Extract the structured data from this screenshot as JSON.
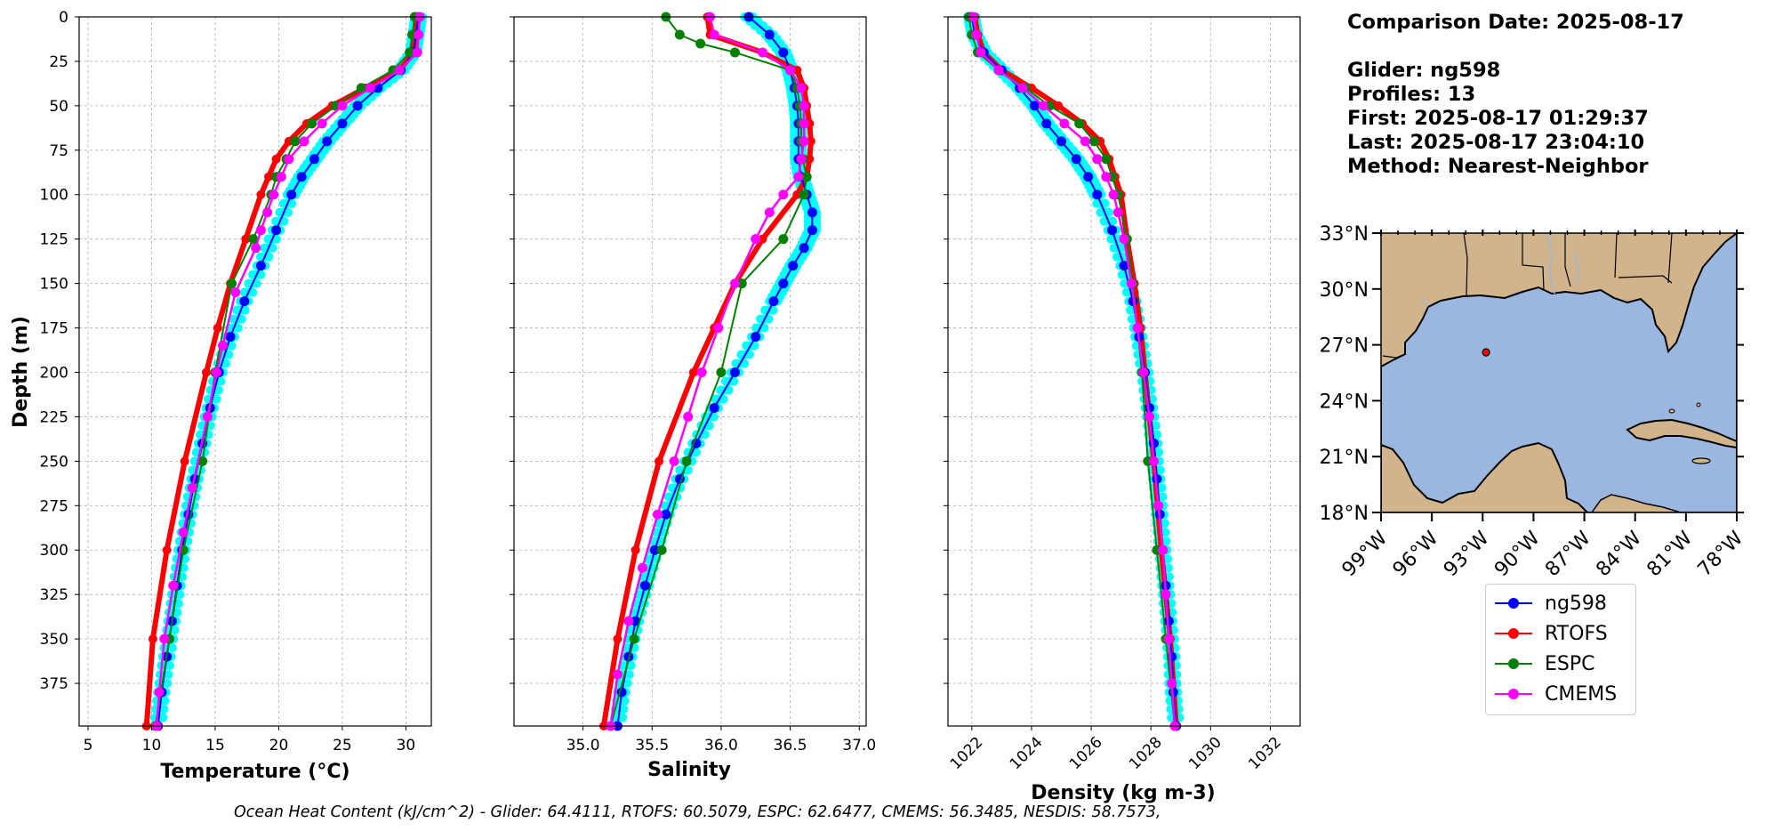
{
  "info": {
    "comparison_date": "Comparison Date: 2025-08-17",
    "glider": "Glider: ng598",
    "profiles": "Profiles: 13",
    "first": "First: 2025-08-17 01:29:37",
    "last": "Last: 2025-08-17 23:04:10",
    "method": "Method: Nearest-Neighbor"
  },
  "footer": "Ocean Heat Content (kJ/cm^2) - Glider: 64.4111,  RTOFS: 60.5079,  ESPC: 62.6477,  CMEMS: 56.3485,  NESDIS: 58.7573,",
  "legend": [
    {
      "label": "ng598",
      "color": "#0000ff"
    },
    {
      "label": "RTOFS",
      "color": "#ff0000"
    },
    {
      "label": "ESPC",
      "color": "#008000"
    },
    {
      "label": "CMEMS",
      "color": "#ff00ff"
    }
  ],
  "colors": {
    "glider_points": "#00ffff",
    "land": "#d2b48c",
    "ocean": "#9bb7e0"
  },
  "chart_data": [
    {
      "type": "line",
      "xlabel": "Temperature (°C)",
      "ylabel": "Depth (m)",
      "xlim": [
        4.3,
        32
      ],
      "xticks": [
        5,
        10,
        15,
        20,
        25,
        30
      ],
      "ylim": [
        399,
        0
      ],
      "yticks": [
        0,
        25,
        50,
        75,
        100,
        125,
        150,
        175,
        200,
        225,
        250,
        275,
        300,
        325,
        350,
        375
      ],
      "grid": true,
      "series": [
        {
          "name": "ng598",
          "color": "#0000ff",
          "depth": [
            0,
            10,
            20,
            30,
            40,
            50,
            60,
            70,
            80,
            90,
            100,
            120,
            140,
            160,
            180,
            200,
            220,
            240,
            260,
            280,
            300,
            320,
            340,
            360,
            380,
            399
          ],
          "values": [
            31,
            30.8,
            30.6,
            29.6,
            27.8,
            26.2,
            25,
            23.8,
            22.8,
            21.8,
            21,
            19.8,
            18.6,
            17.3,
            16.2,
            15.3,
            14.6,
            14,
            13.4,
            12.9,
            12.4,
            12,
            11.6,
            11.2,
            10.8,
            10.5
          ]
        },
        {
          "name": "RTOFS",
          "color": "#ff0000",
          "depth": [
            0,
            10,
            20,
            30,
            40,
            50,
            60,
            70,
            80,
            90,
            100,
            125,
            150,
            175,
            200,
            250,
            300,
            350,
            399
          ],
          "values": [
            30.8,
            30.7,
            30.6,
            29.5,
            26.8,
            24.2,
            22.2,
            20.8,
            19.8,
            19.2,
            18.6,
            17.4,
            16.2,
            15.2,
            14.3,
            12.6,
            11.2,
            10.1,
            9.6
          ]
        },
        {
          "name": "ESPC",
          "color": "#008000",
          "depth": [
            0,
            10,
            20,
            30,
            40,
            50,
            60,
            70,
            80,
            90,
            100,
            125,
            150,
            200,
            250,
            300,
            350,
            399
          ],
          "values": [
            30.7,
            30.5,
            30.3,
            29,
            26.5,
            24.5,
            22.6,
            21.3,
            20.6,
            19.8,
            19.4,
            18,
            16.3,
            15,
            14,
            12.5,
            11.4,
            10.3
          ]
        },
        {
          "name": "CMEMS",
          "color": "#ff00ff",
          "depth": [
            0,
            10,
            20,
            30,
            40,
            50,
            60,
            70,
            80,
            90,
            100,
            110,
            120,
            130,
            155,
            185,
            200,
            225,
            265,
            290,
            320,
            350,
            380,
            399
          ],
          "values": [
            31.1,
            31,
            30.9,
            29.5,
            27.2,
            25,
            23.4,
            22,
            20.8,
            20.2,
            19.6,
            19.1,
            18.6,
            18.2,
            16.6,
            15.6,
            15.1,
            14.4,
            13.2,
            12.5,
            11.7,
            11,
            10.6,
            10.4
          ]
        }
      ]
    },
    {
      "type": "line",
      "xlabel": "Salinity",
      "ylabel": "",
      "xlim": [
        34.5,
        37.05
      ],
      "xticks": [
        35.0,
        35.5,
        36.0,
        36.5,
        37.0
      ],
      "ylim": [
        399,
        0
      ],
      "yticks": [
        0,
        25,
        50,
        75,
        100,
        125,
        150,
        175,
        200,
        225,
        250,
        275,
        300,
        325,
        350,
        375
      ],
      "grid": true,
      "series": [
        {
          "name": "ng598",
          "color": "#0000ff",
          "depth": [
            0,
            10,
            20,
            30,
            40,
            50,
            60,
            70,
            80,
            90,
            100,
            110,
            120,
            130,
            140,
            150,
            160,
            180,
            200,
            220,
            240,
            260,
            280,
            300,
            320,
            340,
            360,
            380,
            399
          ],
          "values": [
            36.2,
            36.35,
            36.45,
            36.5,
            36.53,
            36.55,
            36.56,
            36.56,
            36.56,
            36.58,
            36.62,
            36.66,
            36.66,
            36.6,
            36.52,
            36.45,
            36.38,
            36.25,
            36.1,
            35.95,
            35.82,
            35.7,
            35.6,
            35.52,
            35.45,
            35.38,
            35.33,
            35.28,
            35.25
          ]
        },
        {
          "name": "RTOFS",
          "color": "#ff0000",
          "depth": [
            0,
            10,
            20,
            30,
            40,
            50,
            60,
            70,
            80,
            90,
            100,
            125,
            150,
            175,
            200,
            250,
            300,
            350,
            399
          ],
          "values": [
            35.9,
            35.92,
            36.3,
            36.55,
            36.6,
            36.62,
            36.64,
            36.65,
            36.64,
            36.62,
            36.55,
            36.3,
            36.1,
            35.95,
            35.8,
            35.55,
            35.38,
            35.25,
            35.15
          ]
        },
        {
          "name": "ESPC",
          "color": "#008000",
          "depth": [
            0,
            10,
            15,
            20,
            30,
            40,
            50,
            60,
            70,
            80,
            90,
            100,
            125,
            150,
            200,
            250,
            300,
            350,
            399
          ],
          "values": [
            35.6,
            35.7,
            35.85,
            36.1,
            36.5,
            36.55,
            36.57,
            36.58,
            36.58,
            36.59,
            36.62,
            36.6,
            36.45,
            36.15,
            36.0,
            35.75,
            35.57,
            35.37,
            35.2
          ]
        },
        {
          "name": "CMEMS",
          "color": "#ff00ff",
          "depth": [
            0,
            10,
            20,
            30,
            40,
            50,
            60,
            70,
            80,
            90,
            100,
            110,
            125,
            150,
            175,
            200,
            225,
            250,
            280,
            310,
            340,
            370,
            399
          ],
          "values": [
            35.92,
            35.95,
            36.3,
            36.5,
            36.58,
            36.6,
            36.6,
            36.6,
            36.58,
            36.56,
            36.45,
            36.35,
            36.25,
            36.1,
            35.98,
            35.86,
            35.76,
            35.66,
            35.54,
            35.43,
            35.33,
            35.25,
            35.2
          ]
        }
      ]
    },
    {
      "type": "line",
      "xlabel": "Density (kg m-3)",
      "ylabel": "",
      "xlim": [
        1021.2,
        1033
      ],
      "xticks": [
        1022,
        1024,
        1026,
        1028,
        1030,
        1032
      ],
      "ylim": [
        399,
        0
      ],
      "yticks": [
        0,
        25,
        50,
        75,
        100,
        125,
        150,
        175,
        200,
        225,
        250,
        275,
        300,
        325,
        350,
        375
      ],
      "grid": true,
      "series": [
        {
          "name": "ng598",
          "color": "#0000ff",
          "depth": [
            0,
            10,
            20,
            30,
            40,
            50,
            60,
            70,
            80,
            90,
            100,
            120,
            140,
            160,
            180,
            200,
            220,
            240,
            260,
            280,
            300,
            320,
            340,
            360,
            380,
            399
          ],
          "values": [
            1022,
            1022.1,
            1022.4,
            1023,
            1023.6,
            1024.1,
            1024.5,
            1025,
            1025.5,
            1025.9,
            1026.2,
            1026.7,
            1027.1,
            1027.4,
            1027.6,
            1027.8,
            1027.95,
            1028.1,
            1028.2,
            1028.3,
            1028.4,
            1028.5,
            1028.6,
            1028.7,
            1028.75,
            1028.85
          ]
        },
        {
          "name": "RTOFS",
          "color": "#ff0000",
          "depth": [
            0,
            10,
            20,
            30,
            40,
            50,
            60,
            70,
            80,
            90,
            100,
            125,
            150,
            175,
            200,
            250,
            300,
            350,
            399
          ],
          "values": [
            1022.1,
            1022.2,
            1022.4,
            1023,
            1024,
            1024.9,
            1025.7,
            1026.3,
            1026.6,
            1026.8,
            1027,
            1027.2,
            1027.45,
            1027.65,
            1027.8,
            1028.1,
            1028.35,
            1028.65,
            1028.85
          ]
        },
        {
          "name": "ESPC",
          "color": "#008000",
          "depth": [
            0,
            10,
            20,
            30,
            40,
            50,
            60,
            70,
            80,
            90,
            100,
            125,
            150,
            200,
            250,
            300,
            350,
            399
          ],
          "values": [
            1021.9,
            1022,
            1022.2,
            1022.9,
            1023.8,
            1024.6,
            1025.6,
            1026.1,
            1026.5,
            1026.7,
            1026.9,
            1027.2,
            1027.4,
            1027.7,
            1027.9,
            1028.2,
            1028.5,
            1028.8
          ]
        },
        {
          "name": "CMEMS",
          "color": "#ff00ff",
          "depth": [
            0,
            10,
            20,
            30,
            40,
            50,
            60,
            70,
            80,
            90,
            100,
            110,
            125,
            150,
            175,
            200,
            225,
            250,
            275,
            300,
            325,
            350,
            375,
            399
          ],
          "values": [
            1022.05,
            1022.15,
            1022.3,
            1022.9,
            1023.7,
            1024.4,
            1025.1,
            1025.8,
            1026.2,
            1026.5,
            1026.75,
            1026.9,
            1027.1,
            1027.35,
            1027.55,
            1027.75,
            1027.95,
            1028.1,
            1028.25,
            1028.4,
            1028.5,
            1028.6,
            1028.7,
            1028.8
          ]
        }
      ]
    },
    {
      "type": "map",
      "lon_ticks": [
        "99°W",
        "96°W",
        "93°W",
        "90°W",
        "87°W",
        "84°W",
        "81°W",
        "78°W"
      ],
      "lat_ticks": [
        "33°N",
        "30°N",
        "27°N",
        "24°N",
        "21°N",
        "18°N"
      ],
      "glider_position": {
        "lon": -92.8,
        "lat": 26.6
      }
    }
  ]
}
